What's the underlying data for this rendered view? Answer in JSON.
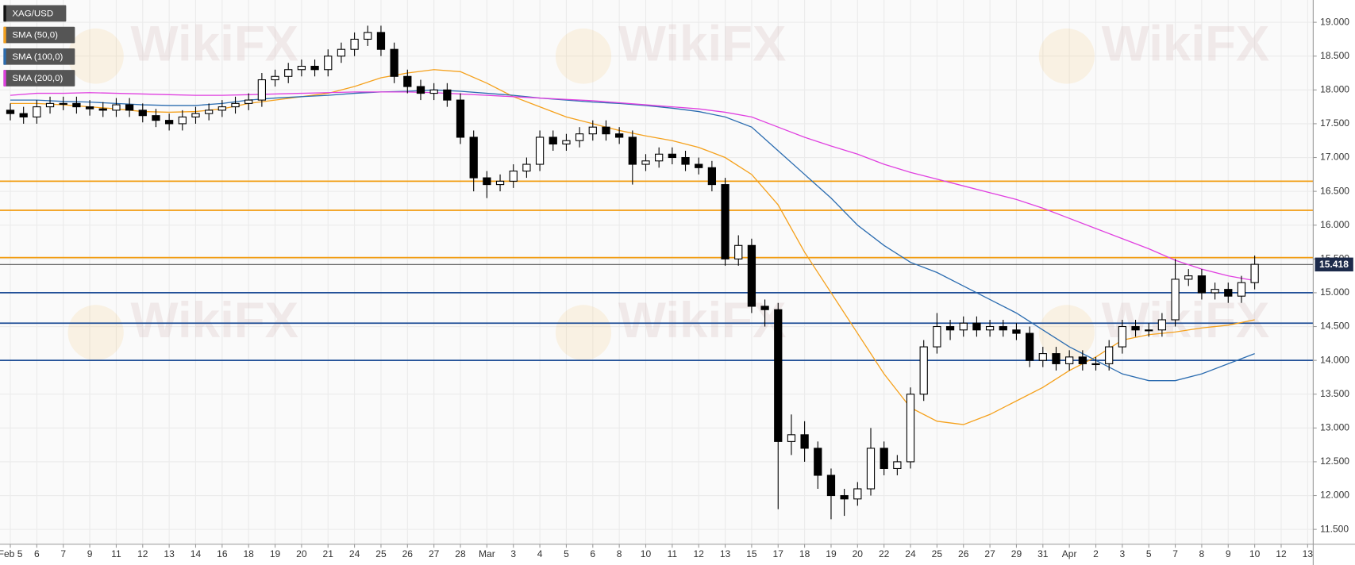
{
  "chart_data": {
    "type": "candlestick",
    "watermark": "WikiFX",
    "xlim": [
      -0.39,
      49.21
    ],
    "ylim": [
      11.28,
      19.33
    ],
    "grid": true,
    "xticks": [
      {
        "value": 0,
        "label": "Feb 5"
      },
      {
        "value": 1,
        "label": "6"
      },
      {
        "value": 2,
        "label": "7"
      },
      {
        "value": 3,
        "label": "9"
      },
      {
        "value": 4,
        "label": "11"
      },
      {
        "value": 5,
        "label": "12"
      },
      {
        "value": 6,
        "label": "13"
      },
      {
        "value": 7,
        "label": "14"
      },
      {
        "value": 8,
        "label": "16"
      },
      {
        "value": 9,
        "label": "18"
      },
      {
        "value": 10,
        "label": "19"
      },
      {
        "value": 11,
        "label": "20"
      },
      {
        "value": 12,
        "label": "21"
      },
      {
        "value": 13,
        "label": "24"
      },
      {
        "value": 14,
        "label": "25"
      },
      {
        "value": 15,
        "label": "26"
      },
      {
        "value": 16,
        "label": "27"
      },
      {
        "value": 17,
        "label": "28"
      },
      {
        "value": 18,
        "label": "Mar"
      },
      {
        "value": 19,
        "label": "3"
      },
      {
        "value": 20,
        "label": "4"
      },
      {
        "value": 21,
        "label": "5"
      },
      {
        "value": 22,
        "label": "6"
      },
      {
        "value": 23,
        "label": "8"
      },
      {
        "value": 24,
        "label": "10"
      },
      {
        "value": 25,
        "label": "11"
      },
      {
        "value": 26,
        "label": "12"
      },
      {
        "value": 27,
        "label": "13"
      },
      {
        "value": 28,
        "label": "15"
      },
      {
        "value": 29,
        "label": "17"
      },
      {
        "value": 30,
        "label": "18"
      },
      {
        "value": 31,
        "label": "19"
      },
      {
        "value": 32,
        "label": "20"
      },
      {
        "value": 33,
        "label": "22"
      },
      {
        "value": 34,
        "label": "24"
      },
      {
        "value": 35,
        "label": "25"
      },
      {
        "value": 36,
        "label": "26"
      },
      {
        "value": 37,
        "label": "27"
      },
      {
        "value": 38,
        "label": "29"
      },
      {
        "value": 39,
        "label": "31"
      },
      {
        "value": 40,
        "label": "Apr"
      },
      {
        "value": 41,
        "label": "2"
      },
      {
        "value": 42,
        "label": "3"
      },
      {
        "value": 43,
        "label": "5"
      },
      {
        "value": 44,
        "label": "7"
      },
      {
        "value": 45,
        "label": "8"
      },
      {
        "value": 46,
        "label": "9"
      },
      {
        "value": 47,
        "label": "10"
      },
      {
        "value": 48,
        "label": "12"
      },
      {
        "value": 49,
        "label": "13"
      }
    ],
    "yticks": [
      {
        "value": 11.5,
        "label": "11.500"
      },
      {
        "value": 12,
        "label": "12.000"
      },
      {
        "value": 12.5,
        "label": "12.500"
      },
      {
        "value": 13,
        "label": "13.000"
      },
      {
        "value": 13.5,
        "label": "13.500"
      },
      {
        "value": 14,
        "label": "14.000"
      },
      {
        "value": 14.5,
        "label": "14.500"
      },
      {
        "value": 15,
        "label": "15.000"
      },
      {
        "value": 15.5,
        "label": "15.500"
      },
      {
        "value": 16,
        "label": "16.000"
      },
      {
        "value": 16.5,
        "label": "16.500"
      },
      {
        "value": 17,
        "label": "17.000"
      },
      {
        "value": 17.5,
        "label": "17.500"
      },
      {
        "value": 18,
        "label": "18.000"
      },
      {
        "value": 18.5,
        "label": "18.500"
      },
      {
        "value": 19,
        "label": "19.000"
      }
    ],
    "series": {
      "name": "XAG/USD",
      "color": "#000000",
      "x": [
        0,
        0.5,
        1,
        1.5,
        2,
        2.5,
        3,
        3.5,
        4,
        4.5,
        5,
        5.5,
        6,
        6.5,
        7,
        7.5,
        8,
        8.5,
        9,
        9.5,
        10,
        10.5,
        11,
        11.5,
        12,
        12.5,
        13,
        13.5,
        14,
        14.5,
        15,
        15.5,
        16,
        16.5,
        17,
        17.5,
        18,
        18.5,
        19,
        19.5,
        20,
        20.5,
        21,
        21.5,
        22,
        22.5,
        23,
        23.5,
        24,
        24.5,
        25,
        25.5,
        26,
        26.5,
        27,
        27.5,
        28,
        28.5,
        29,
        29.5,
        30,
        30.5,
        31,
        31.5,
        32,
        32.5,
        33,
        33.5,
        34,
        34.5,
        35,
        35.5,
        36,
        36.5,
        37,
        37.5,
        38,
        38.5,
        39,
        39.5,
        40,
        40.5,
        41,
        41.5,
        42,
        42.5,
        43,
        43.5,
        44,
        44.5,
        45,
        45.5,
        46,
        46.5,
        47
      ],
      "open": [
        17.7,
        17.65,
        17.6,
        17.75,
        17.8,
        17.8,
        17.75,
        17.72,
        17.7,
        17.78,
        17.7,
        17.62,
        17.55,
        17.5,
        17.6,
        17.65,
        17.7,
        17.75,
        17.8,
        17.85,
        18.15,
        18.2,
        18.3,
        18.35,
        18.3,
        18.5,
        18.6,
        18.75,
        18.85,
        18.6,
        18.2,
        18.05,
        17.95,
        18.0,
        17.85,
        17.3,
        16.7,
        16.6,
        16.65,
        16.8,
        16.9,
        17.3,
        17.2,
        17.25,
        17.35,
        17.45,
        17.35,
        17.3,
        16.9,
        16.95,
        17.05,
        17.0,
        16.9,
        16.85,
        16.6,
        15.5,
        15.7,
        14.8,
        14.75,
        12.8,
        12.9,
        12.7,
        12.3,
        12.0,
        11.95,
        12.1,
        12.7,
        12.4,
        12.5,
        13.5,
        14.2,
        14.5,
        14.45,
        14.55,
        14.45,
        14.5,
        14.45,
        14.4,
        14.0,
        14.1,
        13.95,
        14.05,
        13.95,
        13.95,
        14.2,
        14.5,
        14.45,
        14.45,
        14.6,
        15.2,
        15.25,
        15.0,
        15.05,
        14.95,
        15.15
      ],
      "high": [
        17.8,
        17.75,
        17.85,
        17.9,
        17.9,
        17.9,
        17.85,
        17.82,
        17.88,
        17.88,
        17.8,
        17.72,
        17.65,
        17.7,
        17.75,
        17.8,
        17.85,
        17.9,
        17.95,
        18.25,
        18.3,
        18.4,
        18.45,
        18.45,
        18.6,
        18.7,
        18.85,
        18.95,
        18.95,
        18.7,
        18.3,
        18.15,
        18.1,
        18.1,
        17.95,
        17.4,
        16.8,
        16.75,
        16.9,
        17.0,
        17.4,
        17.4,
        17.35,
        17.45,
        17.55,
        17.55,
        17.45,
        17.4,
        17.05,
        17.15,
        17.15,
        17.1,
        17.0,
        16.95,
        16.7,
        15.85,
        15.8,
        14.9,
        14.85,
        13.2,
        13.1,
        12.8,
        12.4,
        12.1,
        12.2,
        13.0,
        12.8,
        12.6,
        13.6,
        14.3,
        14.7,
        14.6,
        14.65,
        14.65,
        14.6,
        14.6,
        14.55,
        14.5,
        14.2,
        14.2,
        14.15,
        14.15,
        14.05,
        14.3,
        14.6,
        14.6,
        14.55,
        14.7,
        15.5,
        15.35,
        15.35,
        15.15,
        15.15,
        15.25,
        15.55
      ],
      "low": [
        17.55,
        17.5,
        17.5,
        17.65,
        17.7,
        17.65,
        17.62,
        17.6,
        17.6,
        17.6,
        17.52,
        17.45,
        17.4,
        17.4,
        17.5,
        17.55,
        17.6,
        17.65,
        17.7,
        17.75,
        18.05,
        18.1,
        18.2,
        18.2,
        18.2,
        18.4,
        18.5,
        18.65,
        18.5,
        18.1,
        17.95,
        17.85,
        17.85,
        17.75,
        17.2,
        16.5,
        16.4,
        16.5,
        16.55,
        16.7,
        16.8,
        17.1,
        17.1,
        17.15,
        17.25,
        17.25,
        17.2,
        16.6,
        16.8,
        16.85,
        16.9,
        16.8,
        16.75,
        16.5,
        15.4,
        15.4,
        14.7,
        14.5,
        11.8,
        12.6,
        12.5,
        12.1,
        11.65,
        11.7,
        11.85,
        12.0,
        12.3,
        12.3,
        12.4,
        13.4,
        14.1,
        14.3,
        14.35,
        14.35,
        14.35,
        14.35,
        14.3,
        13.9,
        13.9,
        13.85,
        13.85,
        13.85,
        13.85,
        13.85,
        14.1,
        14.35,
        14.35,
        14.35,
        14.5,
        15.1,
        14.9,
        14.9,
        14.85,
        14.85,
        15.05
      ],
      "close": [
        17.65,
        17.6,
        17.75,
        17.8,
        17.8,
        17.75,
        17.72,
        17.7,
        17.78,
        17.7,
        17.62,
        17.55,
        17.5,
        17.6,
        17.65,
        17.7,
        17.75,
        17.8,
        17.85,
        18.15,
        18.2,
        18.3,
        18.35,
        18.3,
        18.5,
        18.6,
        18.75,
        18.85,
        18.6,
        18.2,
        18.05,
        17.95,
        18.0,
        17.85,
        17.3,
        16.7,
        16.6,
        16.65,
        16.8,
        16.9,
        17.3,
        17.2,
        17.25,
        17.35,
        17.45,
        17.35,
        17.3,
        16.9,
        16.95,
        17.05,
        17.0,
        16.9,
        16.85,
        16.6,
        15.5,
        15.7,
        14.8,
        14.75,
        12.8,
        12.9,
        12.7,
        12.3,
        12.0,
        11.95,
        12.1,
        12.7,
        12.4,
        12.5,
        13.5,
        14.2,
        14.5,
        14.45,
        14.55,
        14.45,
        14.5,
        14.45,
        14.4,
        14.0,
        14.1,
        13.95,
        14.05,
        13.95,
        13.95,
        14.2,
        14.5,
        14.45,
        14.45,
        14.6,
        15.2,
        15.25,
        15.0,
        15.05,
        14.95,
        15.15,
        15.42
      ]
    },
    "indicator_x": [
      0,
      1,
      2,
      3,
      4,
      5,
      6,
      7,
      8,
      9,
      10,
      11,
      12,
      13,
      14,
      15,
      16,
      17,
      18,
      19,
      20,
      21,
      22,
      23,
      24,
      25,
      26,
      27,
      28,
      29,
      30,
      31,
      32,
      33,
      34,
      35,
      36,
      37,
      38,
      39,
      40,
      41,
      42,
      43,
      44,
      45,
      46,
      47
    ],
    "indicators": [
      {
        "name": "SMA (50,0)",
        "color": "#f5a11c",
        "values": [
          17.8,
          17.8,
          17.78,
          17.75,
          17.72,
          17.68,
          17.67,
          17.68,
          17.72,
          17.8,
          17.85,
          17.9,
          17.95,
          18.05,
          18.18,
          18.25,
          18.3,
          18.27,
          18.1,
          17.9,
          17.75,
          17.6,
          17.5,
          17.4,
          17.32,
          17.25,
          17.15,
          17.0,
          16.75,
          16.3,
          15.6,
          15.0,
          14.4,
          13.8,
          13.3,
          13.1,
          13.05,
          13.2,
          13.4,
          13.6,
          13.85,
          14.05,
          14.3,
          14.38,
          14.42,
          14.48,
          14.52,
          14.6
        ]
      },
      {
        "name": "SMA (100,0)",
        "color": "#2b6cb0",
        "values": [
          17.85,
          17.85,
          17.83,
          17.82,
          17.8,
          17.78,
          17.77,
          17.77,
          17.8,
          17.85,
          17.88,
          17.9,
          17.92,
          17.95,
          17.97,
          17.98,
          18.0,
          17.98,
          17.95,
          17.92,
          17.88,
          17.85,
          17.82,
          17.8,
          17.77,
          17.73,
          17.68,
          17.6,
          17.45,
          17.1,
          16.75,
          16.4,
          16.0,
          15.7,
          15.45,
          15.3,
          15.1,
          14.9,
          14.7,
          14.45,
          14.2,
          14.0,
          13.8,
          13.7,
          13.7,
          13.8,
          13.95,
          14.1
        ]
      },
      {
        "name": "SMA (200,0)",
        "color": "#e040e0",
        "values": [
          17.92,
          17.95,
          17.95,
          17.96,
          17.95,
          17.94,
          17.93,
          17.92,
          17.92,
          17.93,
          17.94,
          17.95,
          17.96,
          17.97,
          17.97,
          17.97,
          17.96,
          17.94,
          17.92,
          17.9,
          17.88,
          17.86,
          17.84,
          17.81,
          17.78,
          17.75,
          17.72,
          17.67,
          17.6,
          17.45,
          17.3,
          17.17,
          17.05,
          16.9,
          16.78,
          16.68,
          16.58,
          16.48,
          16.38,
          16.25,
          16.1,
          15.95,
          15.8,
          15.65,
          15.48,
          15.35,
          15.25,
          15.18
        ]
      }
    ],
    "levels": [
      {
        "value": 16.65,
        "color": "#f29d12"
      },
      {
        "value": 16.22,
        "color": "#f29d12"
      },
      {
        "value": 15.52,
        "color": "#f29d12"
      },
      {
        "value": 15.0,
        "color": "#1f4e96"
      },
      {
        "value": 14.55,
        "color": "#1f4e96"
      },
      {
        "value": 14.0,
        "color": "#1f4e96"
      }
    ],
    "last_price": 15.418,
    "last_price_color": "#1c2a4a"
  }
}
